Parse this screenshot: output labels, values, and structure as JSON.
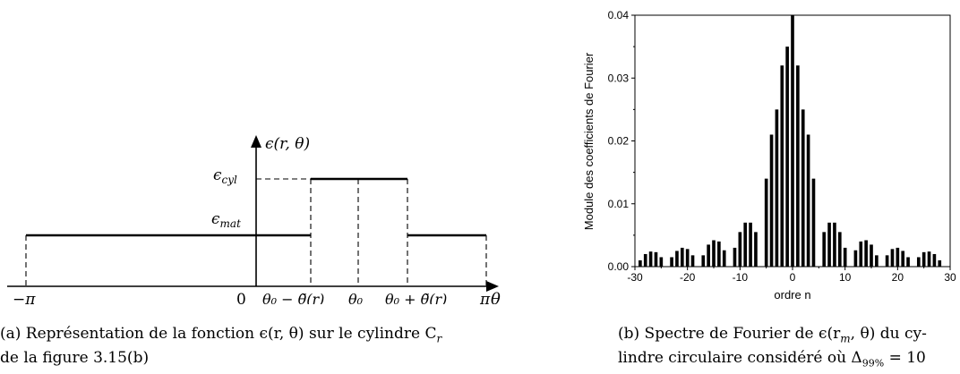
{
  "left_figure": {
    "y_axis_label": "ϵ(r, θ)",
    "x_axis_label": "θ",
    "eps_cyl_label": "ϵ",
    "eps_cyl_sub": "cyl",
    "eps_mat_label": "ϵ",
    "eps_mat_sub": "mat",
    "x_ticks": {
      "minus_pi": "−π",
      "zero": "0",
      "theta0_minus": "θ₀ − θ̃(r)",
      "theta0": "θ₀",
      "theta0_plus": "θ₀ + θ̃(r)",
      "pi": "π"
    },
    "caption_line1": "(a) Représentation de la fonction ϵ(r, θ) sur le cylindre C",
    "caption_line1_sub": "r",
    "caption_line2": "de la figure 3.15(b)"
  },
  "right_figure": {
    "caption_line1": "(b) Spectre de Fourier de ϵ(r",
    "caption_line1_sub": "m",
    "caption_line1_tail": ", θ) du cy-",
    "caption_line2": "lindre circulaire considéré où Δ",
    "caption_line2_sub": "99%",
    "caption_line2_tail": " = 10"
  },
  "chart_data": {
    "type": "bar",
    "xlabel": "ordre n",
    "ylabel": "Module des coefficients de Fourier",
    "xlim": [
      -30,
      30
    ],
    "ylim": [
      0,
      0.04
    ],
    "x_ticks": [
      -30,
      -20,
      -10,
      0,
      10,
      20,
      30
    ],
    "y_ticks": [
      "0.00",
      "0.01",
      "0.02",
      "0.03",
      "0.04"
    ],
    "x": [
      -29,
      -28,
      -27,
      -26,
      -25,
      -24,
      -23,
      -22,
      -21,
      -20,
      -19,
      -18,
      -17,
      -16,
      -15,
      -14,
      -13,
      -12,
      -11,
      -10,
      -9,
      -8,
      -7,
      -6,
      -5,
      -4,
      -3,
      -2,
      -1,
      0,
      1,
      2,
      3,
      4,
      5,
      6,
      7,
      8,
      9,
      10,
      11,
      12,
      13,
      14,
      15,
      16,
      17,
      18,
      19,
      20,
      21,
      22,
      23,
      24,
      25,
      26,
      27,
      28,
      29
    ],
    "values": [
      0.001,
      0.002,
      0.0024,
      0.0023,
      0.0015,
      0,
      0.0015,
      0.0025,
      0.003,
      0.0028,
      0.0018,
      0,
      0.0018,
      0.0035,
      0.0042,
      0.004,
      0.0026,
      0,
      0.003,
      0.0055,
      0.007,
      0.007,
      0.0055,
      0,
      0.014,
      0.021,
      0.025,
      0.032,
      0.035,
      0.04,
      0.032,
      0.025,
      0.021,
      0.014,
      0,
      0.0055,
      0.007,
      0.007,
      0.0055,
      0.003,
      0,
      0.0026,
      0.004,
      0.0042,
      0.0035,
      0.0018,
      0,
      0.0018,
      0.0028,
      0.003,
      0.0025,
      0.0015,
      0,
      0.0015,
      0.0023,
      0.0024,
      0.002,
      0.001,
      0
    ]
  }
}
